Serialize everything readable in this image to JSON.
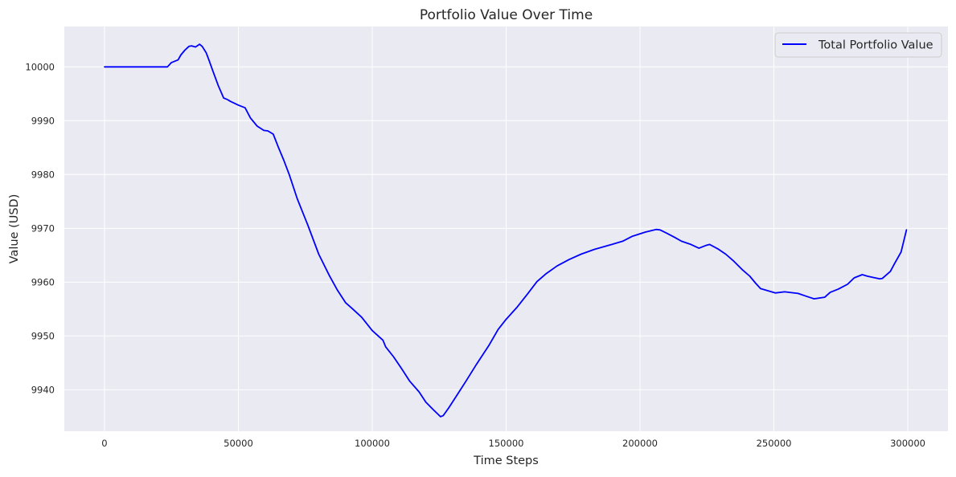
{
  "chart_data": {
    "type": "line",
    "title": "Portfolio Value Over Time",
    "xlabel": "Time Steps",
    "ylabel": "Value (USD)",
    "xlim": [
      -15000,
      315000
    ],
    "ylim": [
      9932.3,
      10007.5
    ],
    "xticks": [
      0,
      50000,
      100000,
      150000,
      200000,
      250000,
      300000
    ],
    "xtick_labels": [
      "0",
      "50000",
      "100000",
      "150000",
      "200000",
      "250000",
      "300000"
    ],
    "yticks": [
      9940,
      9950,
      9960,
      9970,
      9980,
      9990,
      10000
    ],
    "ytick_labels": [
      "9940",
      "9950",
      "9960",
      "9970",
      "9980",
      "9990",
      "10000"
    ],
    "grid": true,
    "legend_position": "top-right",
    "series": [
      {
        "name": "Total Portfolio Value",
        "color": "#0000ff",
        "x": [
          0,
          23500,
          25000,
          27500,
          28500,
          30000,
          31500,
          32500,
          34000,
          35500,
          36500,
          38000,
          39000,
          40500,
          42500,
          44500,
          46000,
          47000,
          50000,
          52500,
          54500,
          57000,
          59500,
          61000,
          63000,
          65000,
          67000,
          69000,
          72000,
          76000,
          80000,
          84000,
          87000,
          90000,
          92500,
          96000,
          100000,
          104000,
          105000,
          108000,
          111000,
          114000,
          117500,
          120000,
          123000,
          125500,
          126500,
          128500,
          132000,
          135000,
          139000,
          143500,
          147000,
          150000,
          154000,
          158000,
          161500,
          165000,
          169000,
          173500,
          178000,
          183000,
          188000,
          193500,
          197000,
          202000,
          206000,
          207500,
          210000,
          213000,
          215500,
          219000,
          222000,
          224500,
          226000,
          229000,
          232000,
          235000,
          238000,
          241000,
          243000,
          245000,
          250500,
          254000,
          259000,
          262000,
          265000,
          269000,
          271000,
          274000,
          277500,
          280000,
          283000,
          285000,
          289500,
          290500,
          293500,
          295000,
          297500,
          299500
        ],
        "y": [
          10000,
          10000,
          10000.8,
          10001.3,
          10002.2,
          10003.1,
          10003.8,
          10003.9,
          10003.7,
          10004.2,
          10003.8,
          10002.6,
          10001.3,
          9999.2,
          9996.5,
          9994.2,
          9993.9,
          9993.6,
          9992.9,
          9992.4,
          9990.5,
          9989,
          9988.2,
          9988.1,
          9987.5,
          9985,
          9982.6,
          9980,
          9975.5,
          9970.5,
          9965.2,
          9961.2,
          9958.5,
          9956.2,
          9955.1,
          9953.5,
          9951,
          9949.2,
          9948,
          9946.1,
          9943.9,
          9941.6,
          9939.6,
          9937.7,
          9936.2,
          9935,
          9935.2,
          9936.6,
          9939.3,
          9941.6,
          9944.8,
          9948.2,
          9951.2,
          9953.1,
          9955.3,
          9957.8,
          9960.1,
          9961.6,
          9963,
          9964.2,
          9965.2,
          9966.1,
          9966.8,
          9967.6,
          9968.5,
          9969.3,
          9969.8,
          9969.7,
          9969.1,
          9968.3,
          9967.6,
          9967,
          9966.3,
          9966.8,
          9967,
          9966.2,
          9965.2,
          9963.9,
          9962.4,
          9961.1,
          9959.9,
          9958.8,
          9958,
          9958.2,
          9957.9,
          9957.4,
          9956.9,
          9957.2,
          9958.1,
          9958.7,
          9959.6,
          9960.8,
          9961.4,
          9961.1,
          9960.6,
          9960.7,
          9962,
          9963.4,
          9965.6,
          9969.7
        ]
      }
    ]
  }
}
